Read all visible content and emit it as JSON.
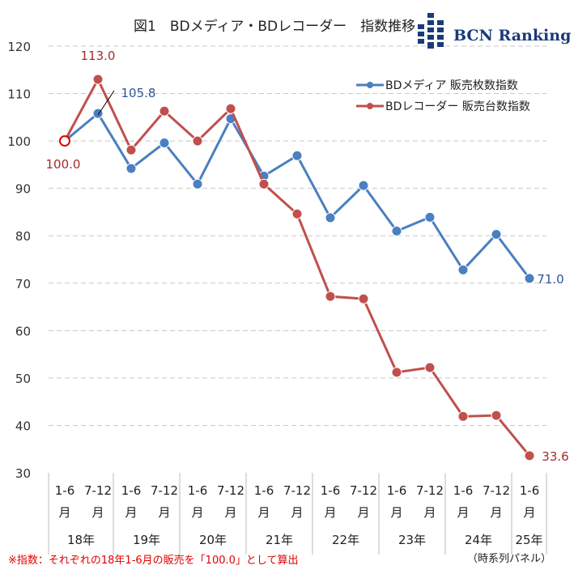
{
  "title": "図1　BDメディア・BDレコーダー　指数推移",
  "logo": "BCN Ranking",
  "footnote": "※指数：それぞれの18年1-6月の販売を「100.0」として算出",
  "panel_note": "（時系列パネル）",
  "chart_data": {
    "type": "line",
    "title": "図1　BDメディア・BDレコーダー　指数推移",
    "ylim": [
      30,
      120
    ],
    "yticks": [
      30,
      40,
      50,
      60,
      70,
      80,
      90,
      100,
      110,
      120
    ],
    "grid": true,
    "legend_position": "top-right",
    "x_half": [
      "1-6",
      "7-12",
      "1-6",
      "7-12",
      "1-6",
      "7-12",
      "1-6",
      "7-12",
      "1-6",
      "7-12",
      "1-6",
      "7-12",
      "1-6",
      "7-12",
      "1-6"
    ],
    "x_month": "月",
    "years": [
      "18年",
      "19年",
      "20年",
      "21年",
      "22年",
      "23年",
      "24年",
      "25年"
    ],
    "series": [
      {
        "name": "BDメディア 販売枚数指数",
        "color": "#4a7fc1",
        "label_color": "#2f5597",
        "values": [
          100.0,
          105.8,
          94.2,
          99.6,
          90.9,
          104.7,
          92.6,
          96.9,
          83.8,
          90.6,
          81.0,
          83.9,
          72.8,
          80.3,
          71.0
        ]
      },
      {
        "name": "BDレコーダー 販売台数指数",
        "color": "#c0504d",
        "label_color": "#a52a2a",
        "values": [
          100.0,
          113.0,
          98.1,
          106.3,
          100.0,
          106.8,
          90.9,
          84.6,
          67.2,
          66.7,
          51.2,
          52.2,
          41.9,
          42.1,
          33.6
        ]
      }
    ],
    "annotations": [
      {
        "text": "100.0",
        "series": 1,
        "index": 0
      },
      {
        "text": "113.0",
        "series": 1,
        "index": 1
      },
      {
        "text": "105.8",
        "series": 0,
        "index": 1
      },
      {
        "text": "71.0",
        "series": 0,
        "index": 14
      },
      {
        "text": "33.6",
        "series": 1,
        "index": 14
      }
    ]
  }
}
